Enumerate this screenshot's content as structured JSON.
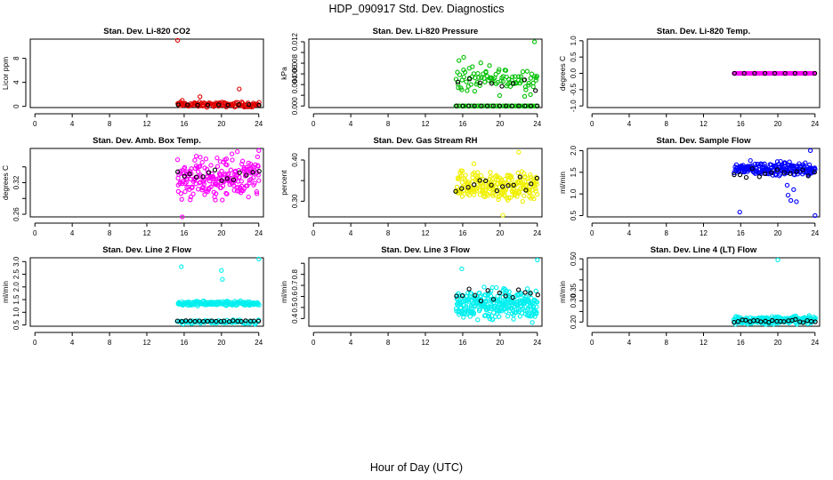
{
  "figure": {
    "title": "HDP_090917  Std. Dev. Diagnostics",
    "xlabel": "Hour of Day (UTC)"
  },
  "colors": {
    "black": "#000000",
    "red": "#e00000",
    "green": "#00c000",
    "magenta": "#ff00ff",
    "yellow": "#f0f000",
    "blue": "#0000ff",
    "cyan": "#00f0f0"
  },
  "chart_data": [
    {
      "type": "scatter",
      "title": "Stan. Dev. Li-820 CO2",
      "ylabel": "Licor ppm",
      "xlim": [
        -0.5,
        24.5
      ],
      "ylim": [
        -0.2,
        11.2
      ],
      "xticks": [
        0,
        4,
        8,
        12,
        16,
        20,
        24
      ],
      "xtick_labels": [
        "0",
        "4",
        "8",
        "12",
        "16",
        "20",
        "24"
      ],
      "yticks": [
        0,
        4,
        8
      ],
      "ytick_labels": [
        "0",
        "4",
        "8"
      ],
      "series": [
        {
          "name": "sd",
          "color": "red",
          "x_range": [
            15.3,
            24
          ],
          "points": 110,
          "base": 0.3,
          "noise": 0.35,
          "extra": [
            [
              15.3,
              11.0
            ],
            [
              17.7,
              1.6
            ],
            [
              21.9,
              2.9
            ],
            [
              15.8,
              1.0
            ]
          ]
        },
        {
          "name": "hourly",
          "color": "black",
          "x_range": [
            15.3,
            24
          ],
          "points": 9,
          "base": 0.25,
          "noise": 0.1
        }
      ]
    },
    {
      "type": "scatter",
      "title": "Stan. Dev. Li-820 Pressure",
      "ylabel": "kPa",
      "xlim": [
        -0.5,
        24.5
      ],
      "ylim": [
        -0.0003,
        0.0125
      ],
      "xticks": [
        0,
        4,
        8,
        12,
        16,
        20,
        24
      ],
      "xtick_labels": [
        "0",
        "4",
        "8",
        "12",
        "16",
        "20",
        "24"
      ],
      "yticks": [
        0,
        0.002,
        0.004,
        0.006,
        0.008,
        0.01,
        0.012
      ],
      "ytick_labels": [
        "0.000",
        "",
        "0.004",
        "0.006",
        "0.008",
        "",
        "0.012"
      ],
      "series": [
        {
          "name": "sd",
          "color": "green",
          "x_range": [
            15.3,
            24
          ],
          "points": 90,
          "base": 0.005,
          "noise": 0.0022,
          "extra": [
            [
              23.7,
              0.012
            ],
            [
              15.6,
              0.0085
            ],
            [
              16.1,
              0.0091
            ]
          ]
        },
        {
          "name": "zero",
          "color": "green",
          "x_range": [
            15.3,
            24
          ],
          "points": 45,
          "base": 0.0,
          "noise": 0.0
        },
        {
          "name": "hourly",
          "color": "black",
          "x_range": [
            15.3,
            24
          ],
          "points": 14,
          "base": 0.0,
          "noise": 0.0
        },
        {
          "name": "hourly2",
          "color": "black",
          "x_range": [
            15.5,
            23.8
          ],
          "points": 8,
          "base": 0.004,
          "noise": 0.0012
        }
      ]
    },
    {
      "type": "scatter",
      "title": "Stan. Dev. Li-820 Temp.",
      "ylabel": "degrees C",
      "xlim": [
        -0.5,
        24.5
      ],
      "ylim": [
        -1.05,
        1.05
      ],
      "xticks": [
        0,
        4,
        8,
        12,
        16,
        20,
        24
      ],
      "xtick_labels": [
        "0",
        "4",
        "8",
        "12",
        "16",
        "20",
        "24"
      ],
      "yticks": [
        -1,
        -0.5,
        0,
        0.5,
        1
      ],
      "ytick_labels": [
        "-1.0",
        "-0.5",
        "0.0",
        "0.5",
        "1.0"
      ],
      "series": [
        {
          "name": "sd",
          "color": "magenta",
          "x_range": [
            15.3,
            24
          ],
          "points": 120,
          "base": 0.0,
          "noise": 0.0
        },
        {
          "name": "hourly",
          "color": "black",
          "x_range": [
            15.3,
            24
          ],
          "points": 9,
          "base": 0.0,
          "noise": 0.0
        }
      ]
    },
    {
      "type": "scatter",
      "title": "Stan. Dev. Amb. Box Temp.",
      "ylabel": "degrees C",
      "xlim": [
        -0.5,
        24.5
      ],
      "ylim": [
        0.255,
        0.385
      ],
      "xticks": [
        0,
        4,
        8,
        12,
        16,
        20,
        24
      ],
      "xtick_labels": [
        "0",
        "4",
        "8",
        "12",
        "16",
        "20",
        "24"
      ],
      "yticks": [
        0.26,
        0.29,
        0.32,
        0.35
      ],
      "ytick_labels": [
        "0.26",
        "",
        "0.32",
        ""
      ],
      "series": [
        {
          "name": "sd",
          "color": "magenta",
          "x_range": [
            15.3,
            24
          ],
          "points": 210,
          "base": 0.327,
          "noise": 0.032,
          "extra": [
            [
              15.8,
              0.255
            ],
            [
              24,
              0.381
            ],
            [
              21.7,
              0.379
            ]
          ]
        },
        {
          "name": "hourly",
          "color": "black",
          "x_range": [
            15.3,
            24
          ],
          "points": 14,
          "base": 0.335,
          "noise": 0.012
        }
      ]
    },
    {
      "type": "scatter",
      "title": "Stan. Dev. Gas Stream RH",
      "ylabel": "percent",
      "xlim": [
        -0.5,
        24.5
      ],
      "ylim": [
        0.262,
        0.428
      ],
      "xticks": [
        0,
        4,
        8,
        12,
        16,
        20,
        24
      ],
      "xtick_labels": [
        "0",
        "4",
        "8",
        "12",
        "16",
        "20",
        "24"
      ],
      "yticks": [
        0.3,
        0.35,
        0.4
      ],
      "ytick_labels": [
        "0.30",
        "",
        "0.40"
      ],
      "series": [
        {
          "name": "sd",
          "color": "yellow",
          "x_range": [
            15.3,
            24
          ],
          "points": 230,
          "base": 0.335,
          "noise": 0.03,
          "extra": [
            [
              22.0,
              0.419
            ],
            [
              20.3,
              0.266
            ],
            [
              17.2,
              0.391
            ]
          ]
        },
        {
          "name": "hourly",
          "color": "black",
          "x_range": [
            15.3,
            24
          ],
          "points": 15,
          "base": 0.338,
          "noise": 0.014
        }
      ]
    },
    {
      "type": "scatter",
      "title": "Stan. Dev. Sample Flow",
      "ylabel": "ml/min",
      "xlim": [
        -0.5,
        24.5
      ],
      "ylim": [
        0.47,
        2.05
      ],
      "xticks": [
        0,
        4,
        8,
        12,
        16,
        20,
        24
      ],
      "xtick_labels": [
        "0",
        "4",
        "8",
        "12",
        "16",
        "20",
        "24"
      ],
      "yticks": [
        0.5,
        1.0,
        1.5,
        2.0
      ],
      "ytick_labels": [
        "0.5",
        "1.0",
        "1.5",
        "2.0"
      ],
      "series": [
        {
          "name": "sd",
          "color": "blue",
          "x_range": [
            15.3,
            24
          ],
          "points": 200,
          "base": 1.58,
          "noise": 0.13,
          "extra": [
            [
              15.9,
              0.58
            ],
            [
              24,
              0.5
            ],
            [
              23.5,
              2.0
            ],
            [
              21.1,
              0.97
            ],
            [
              21.7,
              1.1
            ],
            [
              21.4,
              0.85
            ],
            [
              22.0,
              0.82
            ],
            [
              21.0,
              1.2
            ]
          ]
        },
        {
          "name": "hourly",
          "color": "black",
          "x_range": [
            15.3,
            24
          ],
          "points": 14,
          "base": 1.5,
          "noise": 0.12
        }
      ]
    },
    {
      "type": "scatter",
      "title": "Stan. Dev. Line 2 Flow",
      "ylabel": "ml/min",
      "xlim": [
        -0.5,
        24.5
      ],
      "ylim": [
        0.45,
        3.15
      ],
      "xticks": [
        0,
        4,
        8,
        12,
        16,
        20,
        24
      ],
      "xtick_labels": [
        "0",
        "4",
        "8",
        "12",
        "16",
        "20",
        "24"
      ],
      "yticks": [
        0.5,
        1.0,
        1.5,
        2.0,
        2.5,
        3.0
      ],
      "ytick_labels": [
        "0.5",
        "1.0",
        "1.5",
        "2.0",
        "2.5",
        "3.0"
      ],
      "series": [
        {
          "name": "sd",
          "color": "cyan",
          "x_range": [
            15.3,
            24
          ],
          "points": 170,
          "base": 1.35,
          "noise": 0.08,
          "extra": [
            [
              24,
              3.1
            ],
            [
              15.7,
              2.8
            ],
            [
              20.0,
              2.65
            ],
            [
              20.1,
              2.3
            ]
          ]
        },
        {
          "name": "sd_low",
          "color": "cyan",
          "x_range": [
            15.3,
            24
          ],
          "points": 80,
          "base": 0.62,
          "noise": 0.06
        },
        {
          "name": "hourly",
          "color": "black",
          "x_range": [
            15.3,
            24
          ],
          "points": 20,
          "base": 0.65,
          "noise": 0.03
        }
      ]
    },
    {
      "type": "scatter",
      "title": "Stan. Dev. Line 3 Flow",
      "ylabel": "ml/min",
      "xlim": [
        -0.5,
        24.5
      ],
      "ylim": [
        0.33,
        0.95
      ],
      "xticks": [
        0,
        4,
        8,
        12,
        16,
        20,
        24
      ],
      "xtick_labels": [
        "0",
        "4",
        "8",
        "12",
        "16",
        "20",
        "24"
      ],
      "yticks": [
        0.4,
        0.5,
        0.6,
        0.7,
        0.8,
        0.9
      ],
      "ytick_labels": [
        "0.4",
        "0.5",
        "0.6",
        "0.7",
        "0.8",
        ""
      ],
      "series": [
        {
          "name": "sd",
          "color": "cyan",
          "x_range": [
            15.3,
            24
          ],
          "points": 300,
          "base": 0.53,
          "noise": 0.11,
          "extra": [
            [
              24,
              0.93
            ],
            [
              15.9,
              0.85
            ]
          ]
        },
        {
          "name": "hourly",
          "color": "black",
          "x_range": [
            15.3,
            24
          ],
          "points": 14,
          "base": 0.62,
          "noise": 0.05
        }
      ]
    },
    {
      "type": "scatter",
      "title": "Stan. Dev. Line 4 (LT) Flow",
      "ylabel": "ml/min",
      "xlim": [
        -0.5,
        24.5
      ],
      "ylim": [
        0.18,
        0.505
      ],
      "xticks": [
        0,
        4,
        8,
        12,
        16,
        20,
        24
      ],
      "xtick_labels": [
        "0",
        "4",
        "8",
        "12",
        "16",
        "20",
        "24"
      ],
      "yticks": [
        0.2,
        0.25,
        0.3,
        0.35,
        0.4,
        0.45,
        0.5
      ],
      "ytick_labels": [
        "0.20",
        "",
        "0.30",
        "0.35",
        "",
        "",
        "0.50"
      ],
      "series": [
        {
          "name": "sd",
          "color": "cyan",
          "x_range": [
            15.3,
            24
          ],
          "points": 260,
          "base": 0.208,
          "noise": 0.015,
          "extra": [
            [
              20.0,
              0.495
            ]
          ]
        },
        {
          "name": "hourly",
          "color": "black",
          "x_range": [
            15.3,
            24
          ],
          "points": 22,
          "base": 0.205,
          "noise": 0.006
        }
      ]
    }
  ]
}
